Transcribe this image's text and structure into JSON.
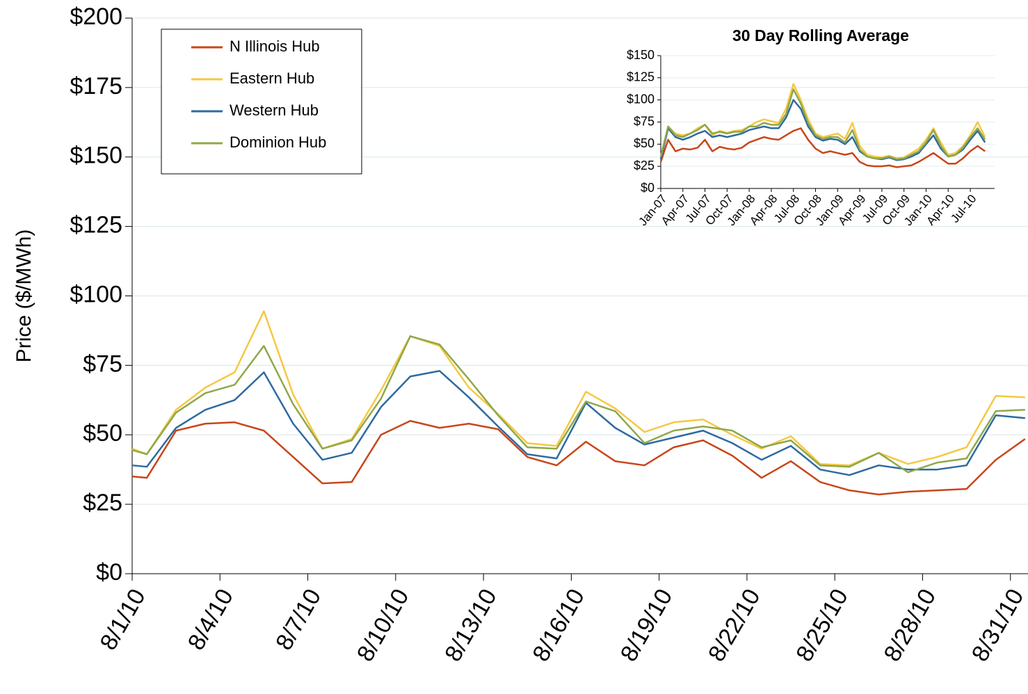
{
  "chart_data": [
    {
      "type": "line",
      "y_label": "Price ($/MWh)",
      "x": [
        0,
        0.5,
        1.5,
        2.5,
        3.5,
        4.5,
        5.5,
        6.5,
        7.5,
        8.5,
        9.5,
        10.5,
        11.5,
        12.5,
        13.5,
        14.5,
        15.5,
        16.5,
        17.5,
        18.5,
        19.5,
        20.5,
        21.5,
        22.5,
        23.5,
        24.5,
        25.5,
        26.5,
        27.5,
        28.5,
        29.5,
        30.5
      ],
      "xlim": [
        0,
        30.6
      ],
      "xticks": [
        {
          "value": 0,
          "label": "8/1/10"
        },
        {
          "value": 3,
          "label": "8/4/10"
        },
        {
          "value": 6,
          "label": "8/7/10"
        },
        {
          "value": 9,
          "label": "8/10/10"
        },
        {
          "value": 12,
          "label": "8/13/10"
        },
        {
          "value": 15,
          "label": "8/16/10"
        },
        {
          "value": 18,
          "label": "8/19/10"
        },
        {
          "value": 21,
          "label": "8/22/10"
        },
        {
          "value": 24,
          "label": "8/25/10"
        },
        {
          "value": 27,
          "label": "8/28/10"
        },
        {
          "value": 30,
          "label": "8/31/10"
        }
      ],
      "ylim": [
        0,
        200
      ],
      "yticks": [
        {
          "value": 0,
          "label": "$0"
        },
        {
          "value": 25,
          "label": "$25"
        },
        {
          "value": 50,
          "label": "$50"
        },
        {
          "value": 75,
          "label": "$75"
        },
        {
          "value": 100,
          "label": "$100"
        },
        {
          "value": 125,
          "label": "$125"
        },
        {
          "value": 150,
          "label": "$150"
        },
        {
          "value": 175,
          "label": "$175"
        },
        {
          "value": 200,
          "label": "$200"
        }
      ],
      "grid": true,
      "legend": "upper left",
      "series": [
        {
          "name": "N Illinois Hub",
          "color": "#c8461a",
          "values": [
            35,
            34.5,
            51.5,
            54,
            54.5,
            51.5,
            42,
            32.5,
            33,
            50,
            55,
            52.5,
            54,
            52,
            42,
            39,
            47.5,
            40.5,
            39,
            45.5,
            48,
            42.5,
            34.5,
            40.5,
            33,
            30,
            28.5,
            29.5,
            30,
            30.5,
            41,
            48.5
          ]
        },
        {
          "name": "Eastern Hub",
          "color": "#f5c842",
          "values": [
            45,
            43,
            59,
            67,
            72.5,
            94.5,
            64.5,
            45,
            48.5,
            66,
            85.5,
            82,
            67,
            57.5,
            47,
            46,
            65.5,
            59.5,
            51,
            54.5,
            55.5,
            50,
            45,
            49.5,
            39.5,
            39,
            43.5,
            39.5,
            42,
            45.5,
            64,
            63.5
          ]
        },
        {
          "name": "Western Hub",
          "color": "#2e6aa0",
          "values": [
            39,
            38.5,
            52.5,
            59,
            62.5,
            72.5,
            54,
            41,
            43.5,
            60,
            71,
            73,
            63.5,
            53,
            43,
            41.5,
            61.5,
            52.5,
            46.5,
            49,
            51.5,
            47,
            41,
            46,
            37.5,
            35.5,
            39,
            37.5,
            37.5,
            39,
            57,
            56
          ]
        },
        {
          "name": "Dominion Hub",
          "color": "#8fa84a",
          "values": [
            44.5,
            43,
            58,
            65,
            68,
            82,
            61,
            45,
            48,
            63,
            85.5,
            82.5,
            70,
            57,
            45.5,
            45,
            62,
            58.5,
            47,
            51.5,
            53,
            51.5,
            45.5,
            48,
            39,
            38.5,
            43.5,
            36.5,
            40,
            41.5,
            58.5,
            59
          ]
        }
      ]
    },
    {
      "type": "line",
      "title": "30 Day Rolling Average",
      "categories": [
        "Jan-07",
        null,
        null,
        "Apr-07",
        null,
        null,
        "Jul-07",
        null,
        null,
        "Oct-07",
        null,
        null,
        "Jan-08",
        null,
        null,
        "Apr-08",
        null,
        null,
        "Jul-08",
        null,
        null,
        "Oct-08",
        null,
        null,
        "Jan-09",
        null,
        null,
        "Apr-09",
        null,
        null,
        "Jul-09",
        null,
        null,
        "Oct-09",
        null,
        null,
        "Jan-10",
        null,
        null,
        "Apr-10",
        null,
        null,
        "Jul-10",
        null,
        null
      ],
      "ylim": [
        0,
        150
      ],
      "yticks": [
        {
          "value": 0,
          "label": "$0"
        },
        {
          "value": 25,
          "label": "$25"
        },
        {
          "value": 50,
          "label": "$50"
        },
        {
          "value": 75,
          "label": "$75"
        },
        {
          "value": 100,
          "label": "$100"
        },
        {
          "value": 125,
          "label": "$125"
        },
        {
          "value": 150,
          "label": "$150"
        }
      ],
      "grid": true,
      "series": [
        {
          "name": "N Illinois Hub",
          "color": "#c8461a",
          "values": [
            30,
            55,
            42,
            45,
            44,
            46,
            55,
            42,
            47,
            45,
            44,
            46,
            52,
            55,
            58,
            56,
            55,
            60,
            65,
            68,
            55,
            45,
            40,
            42,
            40,
            38,
            40,
            30,
            26,
            25,
            25,
            26,
            24,
            25,
            26,
            30,
            35,
            40,
            34,
            28,
            28,
            34,
            42,
            48,
            42
          ]
        },
        {
          "name": "Eastern Hub",
          "color": "#f5c842",
          "values": [
            35,
            70,
            62,
            60,
            62,
            68,
            72,
            60,
            65,
            63,
            65,
            66,
            70,
            75,
            78,
            76,
            74,
            90,
            118,
            100,
            78,
            62,
            58,
            60,
            62,
            56,
            74,
            48,
            38,
            36,
            35,
            37,
            34,
            35,
            40,
            45,
            55,
            68,
            52,
            38,
            40,
            48,
            60,
            75,
            58
          ]
        },
        {
          "name": "Western Hub",
          "color": "#2e6aa0",
          "values": [
            33,
            68,
            58,
            55,
            58,
            62,
            65,
            58,
            60,
            58,
            60,
            62,
            66,
            68,
            70,
            68,
            68,
            80,
            100,
            90,
            70,
            58,
            54,
            56,
            55,
            50,
            58,
            42,
            36,
            34,
            33,
            35,
            32,
            33,
            36,
            40,
            50,
            60,
            45,
            36,
            38,
            44,
            55,
            65,
            52
          ]
        },
        {
          "name": "Dominion Hub",
          "color": "#8fa84a",
          "values": [
            36,
            70,
            60,
            58,
            62,
            66,
            72,
            62,
            64,
            62,
            64,
            64,
            70,
            70,
            74,
            72,
            72,
            84,
            112,
            96,
            74,
            60,
            56,
            58,
            58,
            52,
            66,
            44,
            36,
            34,
            34,
            36,
            33,
            34,
            38,
            42,
            52,
            66,
            48,
            36,
            38,
            46,
            58,
            68,
            55
          ]
        }
      ]
    }
  ]
}
